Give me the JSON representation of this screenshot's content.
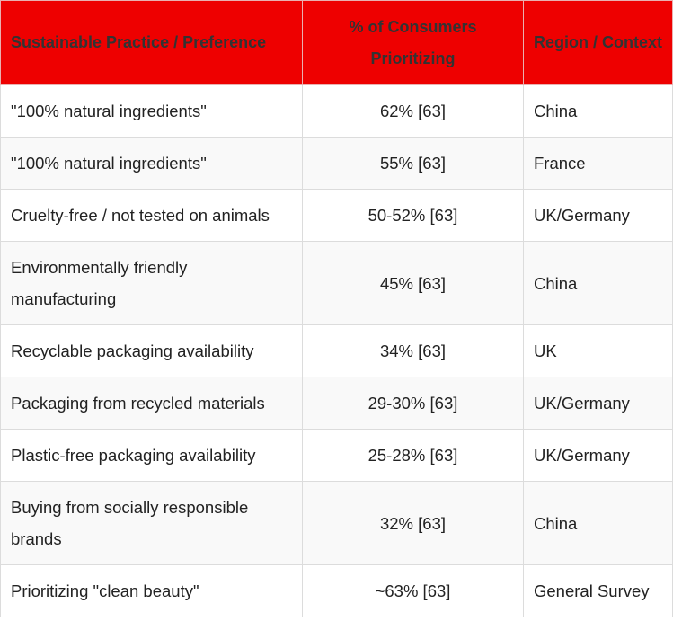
{
  "table": {
    "headers": {
      "practice": "Sustainable Practice / Preference",
      "percent": "% of Consumers Prioritizing",
      "region": "Region / Context"
    },
    "rows": [
      {
        "practice": "\"100% natural ingredients\"",
        "percent": "62% [63]",
        "region": "China"
      },
      {
        "practice": "\"100% natural ingredients\"",
        "percent": "55% [63]",
        "region": "France"
      },
      {
        "practice": "Cruelty-free / not tested on animals",
        "percent": "50-52% [63]",
        "region": "UK/Germany"
      },
      {
        "practice": "Environmentally friendly manufacturing",
        "percent": "45% [63]",
        "region": "China"
      },
      {
        "practice": "Recyclable packaging availability",
        "percent": "34% [63]",
        "region": "UK"
      },
      {
        "practice": "Packaging from recycled materials",
        "percent": "29-30% [63]",
        "region": "UK/Germany"
      },
      {
        "practice": "Plastic-free packaging availability",
        "percent": "25-28% [63]",
        "region": "UK/Germany"
      },
      {
        "practice": "Buying from socially responsible brands",
        "percent": "32% [63]",
        "region": "China"
      },
      {
        "practice": "Prioritizing \"clean beauty\"",
        "percent": "~63% [63]",
        "region": "General Survey"
      }
    ]
  },
  "colors": {
    "header_background": "#ee0000",
    "header_text": "#333333",
    "body_text": "#222222",
    "border": "#dcdcdc"
  }
}
